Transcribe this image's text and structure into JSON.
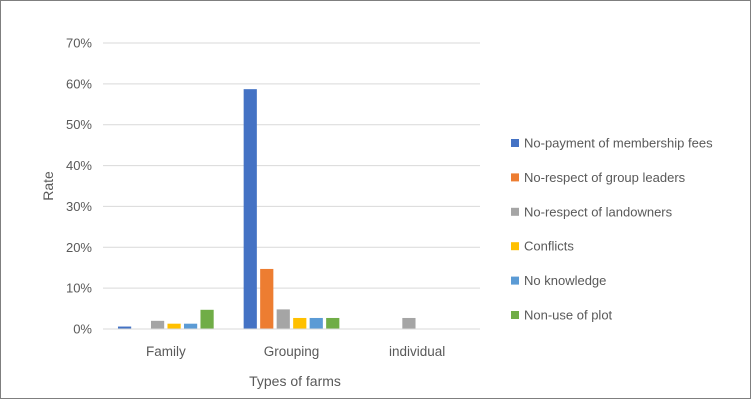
{
  "chart_data": {
    "type": "bar",
    "title": "",
    "xlabel": "Types of farms",
    "ylabel": "Rate",
    "ylim": [
      0,
      0.7
    ],
    "yticks": [
      "0%",
      "10%",
      "20%",
      "30%",
      "40%",
      "50%",
      "60%",
      "70%"
    ],
    "grid": true,
    "legend_position": "right",
    "categories": [
      "Family",
      "Grouping",
      "individual"
    ],
    "series": [
      {
        "name": "No-payment of membership fees",
        "color": "#4472C4",
        "values": [
          0.006,
          0.587,
          0
        ]
      },
      {
        "name": "No-respect of group leaders",
        "color": "#ED7D31",
        "values": [
          0,
          0.147,
          0
        ]
      },
      {
        "name": "No-respect of landowners",
        "color": "#A5A5A5",
        "values": [
          0.02,
          0.048,
          0.027
        ]
      },
      {
        "name": "Conflicts",
        "color": "#FFC000",
        "values": [
          0.013,
          0.027,
          0
        ]
      },
      {
        "name": "No knowledge",
        "color": "#5B9BD5",
        "values": [
          0.013,
          0.027,
          0
        ]
      },
      {
        "name": "Non-use of plot",
        "color": "#70AD47",
        "values": [
          0.047,
          0.027,
          0
        ]
      }
    ]
  }
}
